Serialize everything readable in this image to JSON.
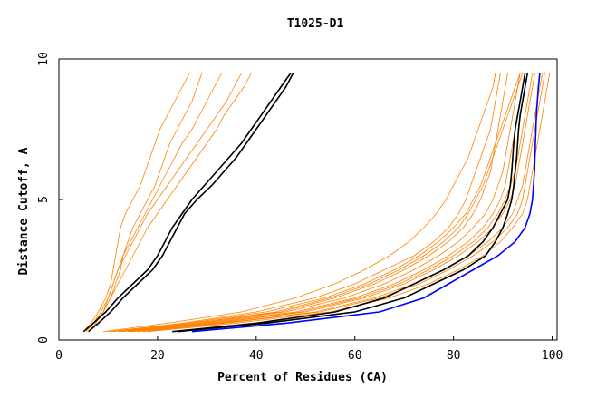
{
  "chart_data": {
    "type": "line",
    "title": "T1025-D1",
    "xlabel": "Percent of Residues (CA)",
    "ylabel": "Distance Cutoff, A",
    "xlim": [
      0,
      101
    ],
    "ylim": [
      0,
      10
    ],
    "xticks": [
      0,
      20,
      40,
      60,
      80,
      100
    ],
    "yticks": [
      0,
      5,
      10
    ],
    "grid": false,
    "colors": {
      "background": "#ffffff",
      "axes": "#000000",
      "ensemble": "#ff8000",
      "highlight_black": "#000000",
      "highlight_blue": "#0000ff"
    },
    "y_samples": [
      0.3,
      0.6,
      1.0,
      1.5,
      2.0,
      2.5,
      3.0,
      3.5,
      4.0,
      4.5,
      5.0,
      5.5,
      6.0,
      6.5,
      7.0,
      7.5,
      8.0,
      8.5,
      9.0,
      9.5
    ],
    "ensemble_low_group": [
      [
        5,
        6.5,
        8,
        9.5,
        10.5,
        11,
        11.5,
        12,
        12.5,
        13.5,
        15,
        16.5,
        17.5,
        18.5,
        19.5,
        20.5,
        22,
        23.5,
        25,
        26.5
      ],
      [
        5.5,
        7,
        9,
        10.5,
        11.5,
        12.5,
        13,
        14,
        15,
        16.5,
        18,
        19.5,
        20.5,
        21.5,
        22.5,
        24,
        25.5,
        27,
        28,
        29
      ],
      [
        6,
        7.5,
        9,
        10,
        11,
        12,
        13,
        14.5,
        16,
        17.5,
        19,
        20.5,
        22,
        23.5,
        25,
        27,
        28.5,
        30,
        31.5,
        33
      ],
      [
        5.5,
        7,
        8.5,
        10,
        11,
        12,
        13.5,
        15,
        16.5,
        18,
        20,
        22,
        24,
        26,
        28,
        30,
        32,
        34,
        35.5,
        37
      ],
      [
        6,
        7.5,
        9,
        10.5,
        12,
        13.5,
        15,
        16.5,
        18,
        20,
        22,
        24,
        26,
        28,
        30,
        32,
        33.5,
        35.5,
        37.5,
        39
      ]
    ],
    "ensemble_main_group": [
      [
        10,
        25,
        40,
        52,
        60,
        66,
        72,
        76,
        79,
        81,
        82.5,
        83.5,
        84.5,
        85.5,
        86.5,
        87.5,
        88,
        88.5,
        89,
        89.5
      ],
      [
        12,
        28,
        45,
        56,
        64,
        70,
        75,
        79,
        82,
        84,
        85.5,
        86.5,
        87.5,
        88,
        88.5,
        89,
        89.5,
        90,
        90.5,
        91
      ],
      [
        14,
        30,
        48,
        60,
        68,
        74,
        79,
        83,
        86,
        88,
        89.5,
        90.5,
        91,
        91.5,
        92,
        92.5,
        93,
        93.5,
        94,
        94.5
      ],
      [
        16,
        33,
        52,
        64,
        72,
        78,
        83,
        87,
        90,
        92,
        93,
        94,
        94.5,
        95,
        95.5,
        96,
        96.5,
        97,
        97.5,
        98
      ],
      [
        18,
        36,
        55,
        67,
        75,
        81,
        86,
        89.5,
        92,
        94,
        95,
        95.5,
        96,
        96.5,
        97,
        97.5,
        98,
        98.5,
        99,
        99.5
      ],
      [
        11,
        26,
        42,
        54,
        62,
        68,
        73,
        77,
        80,
        82.5,
        84,
        85.5,
        86.5,
        87.5,
        88.5,
        89.5,
        90.5,
        91.5,
        92.5,
        93.5
      ],
      [
        13,
        29,
        46,
        58,
        66,
        72,
        77,
        81,
        84,
        86.5,
        88,
        89,
        90,
        90.5,
        91,
        91.5,
        92,
        92.5,
        93,
        93.5
      ],
      [
        15,
        31,
        50,
        62,
        70,
        76,
        81,
        85,
        88,
        90,
        91.5,
        92.5,
        93,
        93.5,
        94,
        94.5,
        95,
        95.5,
        96,
        96.5
      ],
      [
        17,
        34,
        53,
        65,
        73,
        79,
        84,
        88,
        91,
        93,
        94,
        94.5,
        95,
        95.5,
        96,
        96.5,
        97,
        97.5,
        98,
        98.5
      ],
      [
        9,
        22,
        37,
        48,
        56,
        62,
        67,
        71,
        74,
        76.5,
        78.5,
        80,
        81.5,
        83,
        84,
        85,
        86,
        87,
        88,
        88.5
      ],
      [
        12.5,
        27,
        44,
        55,
        63,
        69,
        74,
        78,
        81,
        83,
        84.5,
        86,
        87,
        88,
        89,
        90,
        91,
        92,
        93,
        94
      ],
      [
        14.5,
        32,
        49,
        61,
        69,
        75,
        80,
        84,
        87,
        89,
        90.5,
        91.5,
        92.5,
        93,
        93.5,
        94,
        94.5,
        95,
        95.5,
        96
      ]
    ],
    "series": [
      {
        "color": "#000000",
        "x": [
          5,
          7,
          9.5,
          12,
          15,
          18,
          20,
          21.5,
          23,
          25,
          27,
          29.5,
          32,
          34.5,
          37,
          39,
          41,
          43,
          45,
          47
        ]
      },
      {
        "color": "#000000",
        "x": [
          6,
          8,
          10.5,
          13,
          16,
          19,
          21,
          22.5,
          24,
          25.5,
          28,
          31,
          33.5,
          36,
          38,
          40,
          42,
          44,
          46,
          47.5
        ]
      },
      {
        "color": "#000000",
        "x": [
          23,
          40,
          56,
          66,
          72,
          78,
          83,
          86,
          88,
          89.5,
          91,
          91.5,
          91.8,
          92,
          92.2,
          92.5,
          93,
          93.5,
          94,
          94.5
        ]
      },
      {
        "color": "#000000",
        "x": [
          24,
          42,
          60,
          70,
          76,
          82,
          86.5,
          88.5,
          90,
          91,
          91.8,
          92.2,
          92.5,
          92.8,
          93,
          93.2,
          93.5,
          94,
          94.5,
          95
        ]
      },
      {
        "color": "#0000ff",
        "x": [
          27,
          46,
          65,
          74,
          79,
          84,
          89,
          92.5,
          94.5,
          95.5,
          96,
          96.2,
          96.4,
          96.5,
          96.6,
          96.7,
          96.8,
          97,
          97.2,
          97.5
        ]
      }
    ]
  }
}
